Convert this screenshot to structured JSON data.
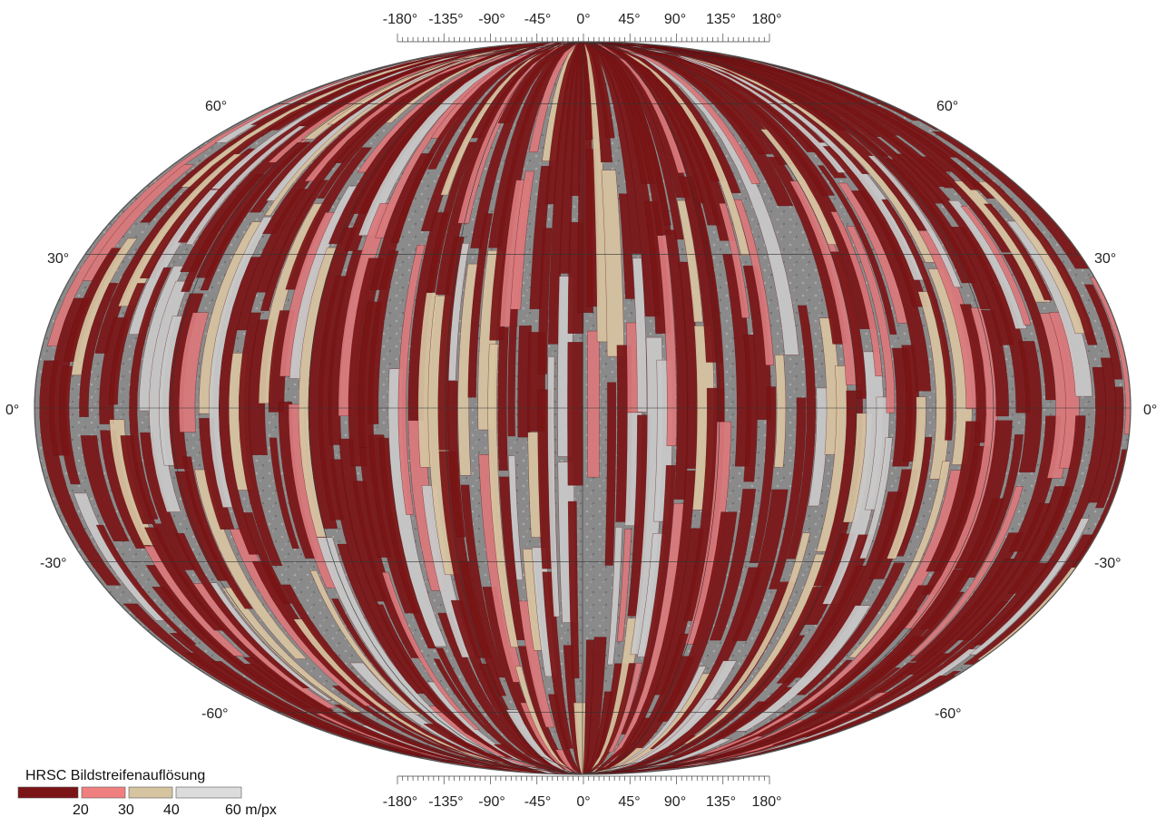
{
  "map": {
    "lon_labels": [
      "-180°",
      "-135°",
      "-90°",
      "-45°",
      "0°",
      "45°",
      "90°",
      "135°",
      "180°"
    ],
    "lat_labels": {
      "n60": "60°",
      "n30": "30°",
      "eq": "0°",
      "s30": "-30°",
      "s60": "-60°"
    },
    "colors": {
      "dark_red": "#7a1416",
      "pink": "#d9787c",
      "tan": "#d6c3a0",
      "gray_light": "#c8c8c8",
      "surface": "#8a8a8a"
    }
  },
  "legend": {
    "title": "HRSC Bildstreifenauflösung",
    "ticks": [
      "20",
      "30",
      "40",
      "60 m/px"
    ],
    "swatches": [
      {
        "name": "dark-red",
        "color": "#7a1416"
      },
      {
        "name": "pink",
        "color": "#f08080"
      },
      {
        "name": "tan",
        "color": "#d6c3a0"
      },
      {
        "name": "light-gray",
        "color": "#dcdcdc"
      }
    ]
  }
}
